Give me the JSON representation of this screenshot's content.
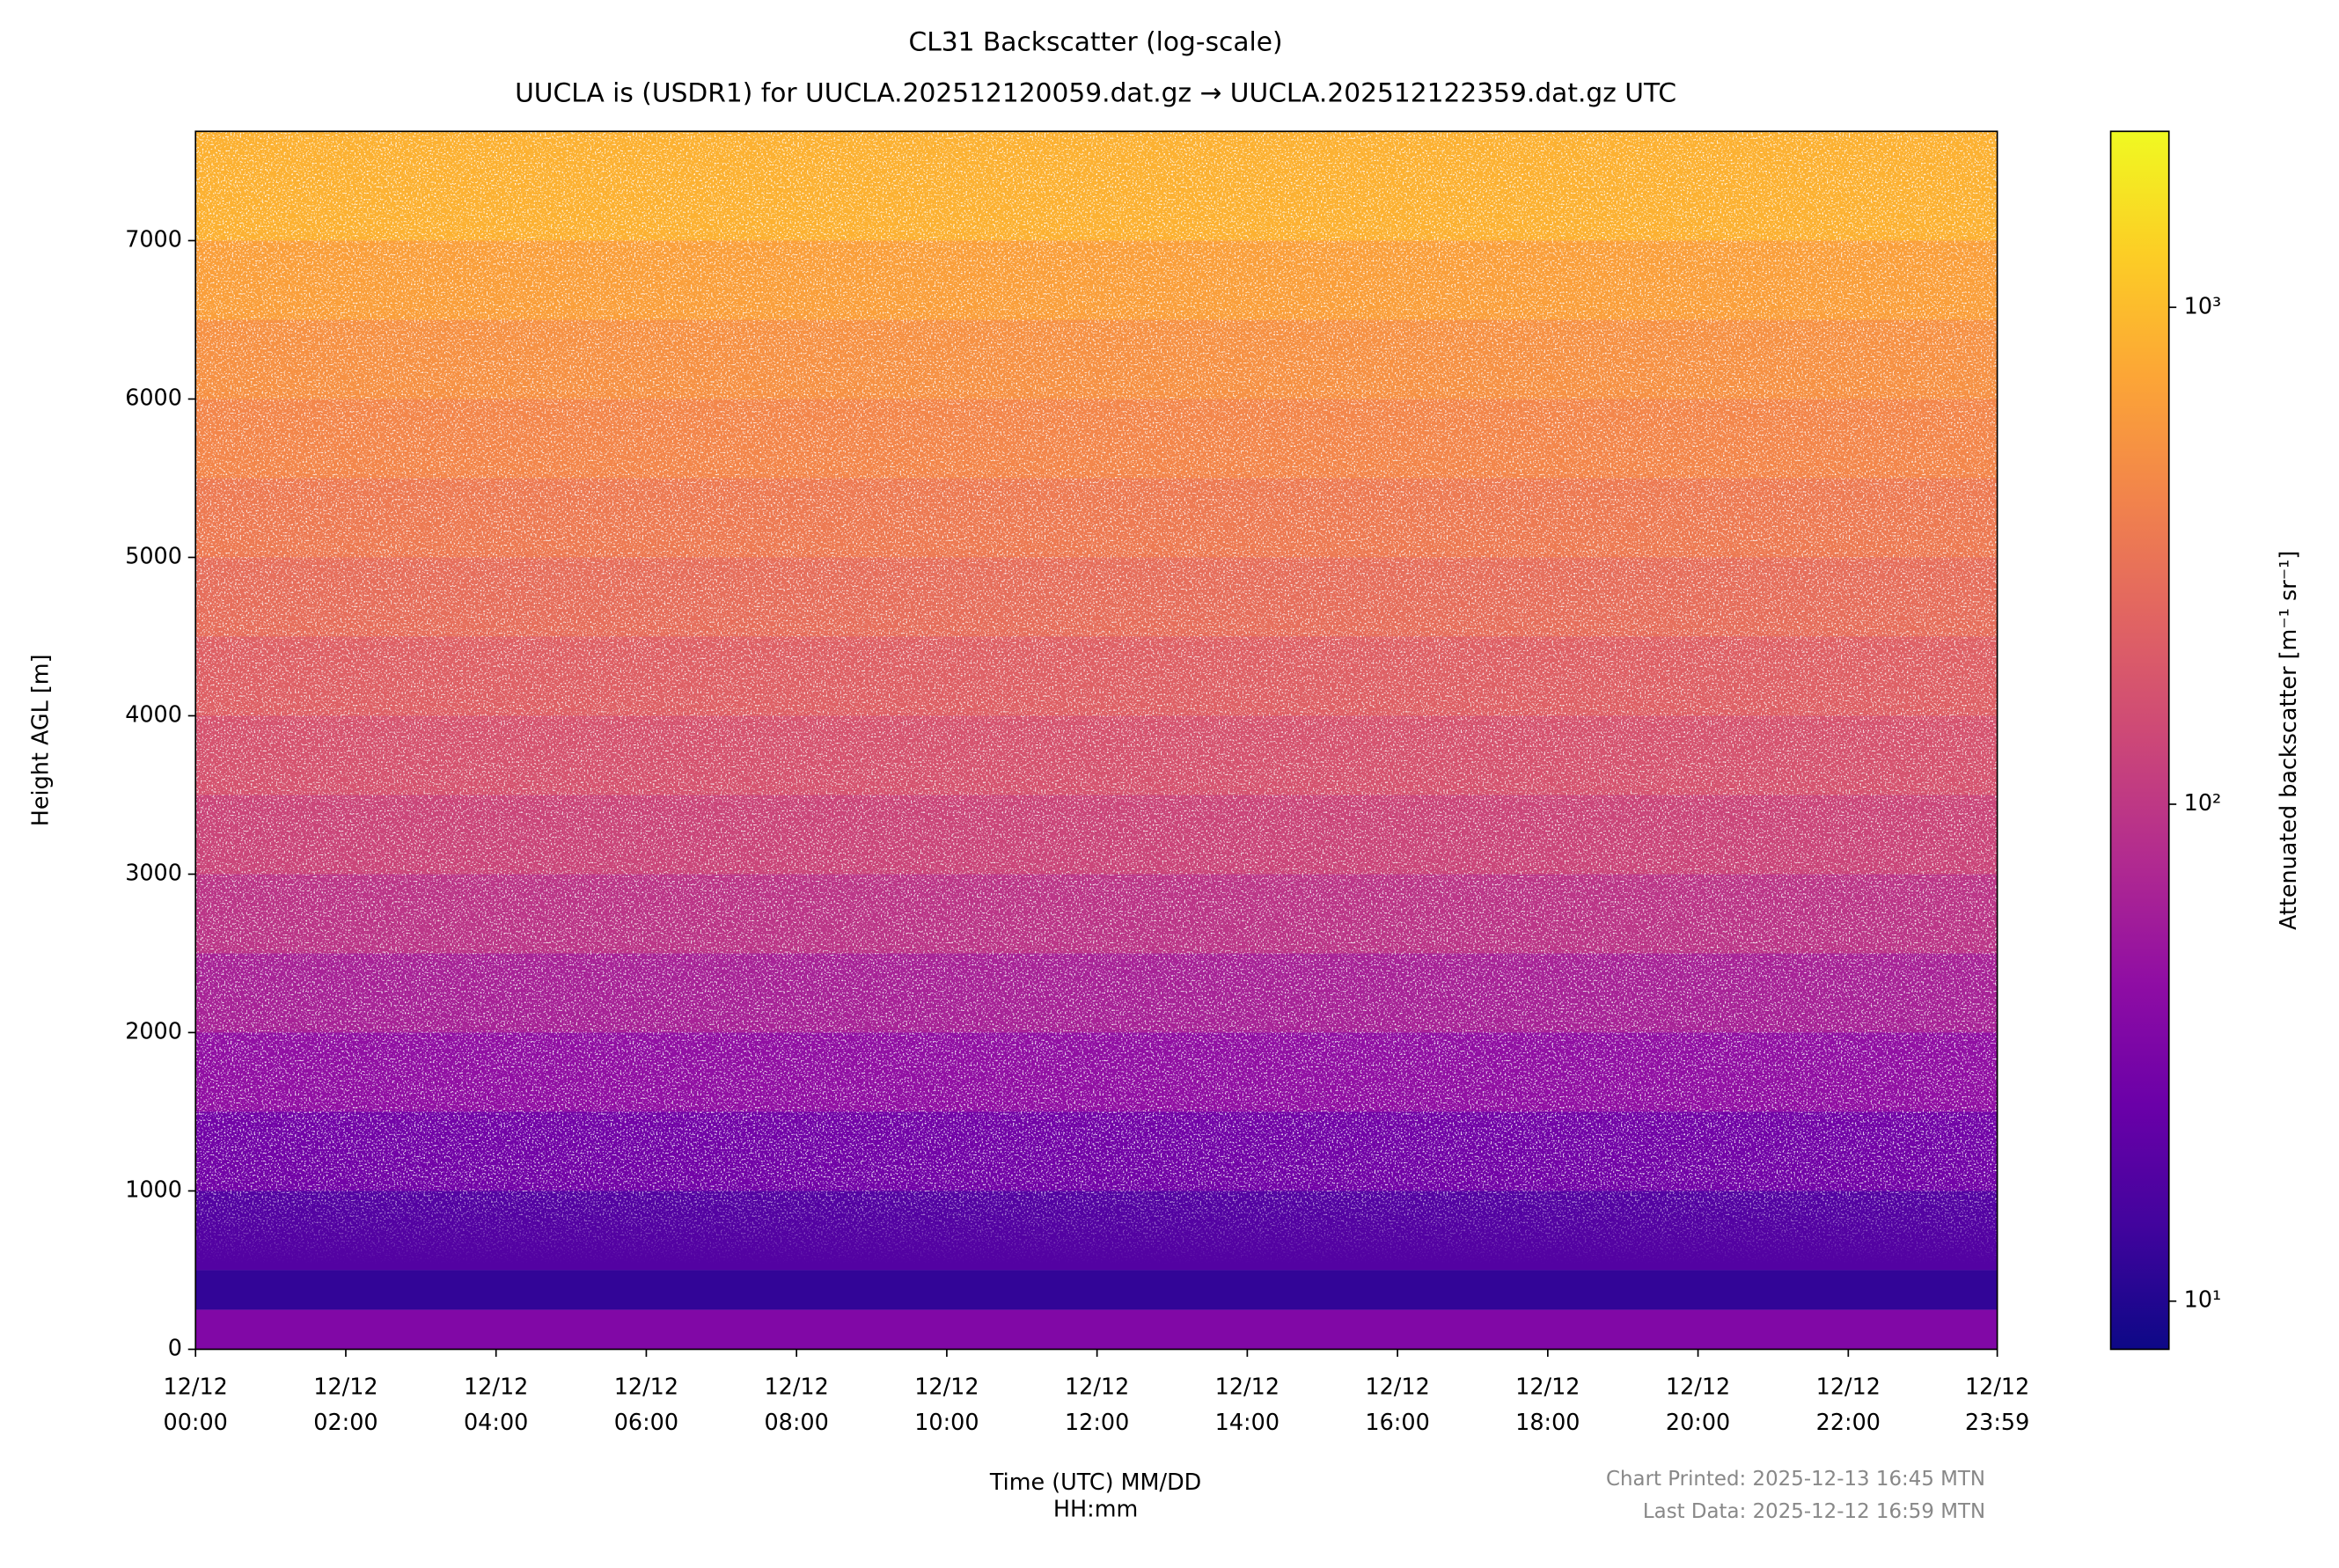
{
  "chart_data": {
    "type": "heatmap",
    "title": "CL31 Backscatter (log-scale)",
    "subtitle": "UUCLA is (USDR1) for UUCLA.202512120059.dat.gz → UUCLA.202512122359.dat.gz UTC",
    "x_label": "Time (UTC) MM/DD\nHH:mm",
    "y_label": "Height AGL [m]",
    "colorbar_label": "Attenuated backscatter [m⁻¹ sr⁻¹]",
    "annotations": [
      "Chart Printed: 2025-12-13 16:45 MTN",
      "Last Data: 2025-12-12 16:59 MTN"
    ],
    "xlim": [
      0,
      1439
    ],
    "xticks": [
      {
        "value": 0,
        "label": "12/12\n00:00"
      },
      {
        "value": 120,
        "label": "12/12\n02:00"
      },
      {
        "value": 240,
        "label": "12/12\n04:00"
      },
      {
        "value": 360,
        "label": "12/12\n06:00"
      },
      {
        "value": 480,
        "label": "12/12\n08:00"
      },
      {
        "value": 600,
        "label": "12/12\n10:00"
      },
      {
        "value": 720,
        "label": "12/12\n12:00"
      },
      {
        "value": 840,
        "label": "12/12\n14:00"
      },
      {
        "value": 960,
        "label": "12/12\n16:00"
      },
      {
        "value": 1080,
        "label": "12/12\n18:00"
      },
      {
        "value": 1200,
        "label": "12/12\n20:00"
      },
      {
        "value": 1320,
        "label": "12/12\n22:00"
      },
      {
        "value": 1439,
        "label": "12/12\n23:59"
      }
    ],
    "ylim": [
      0,
      7690
    ],
    "yticks": [
      0,
      1000,
      2000,
      3000,
      4000,
      5000,
      6000,
      7000
    ],
    "ybins": [
      0,
      250,
      500,
      1000,
      1500,
      2000,
      2500,
      3000,
      3500,
      4000,
      4500,
      5000,
      5500,
      6000,
      6500,
      7000,
      7690
    ],
    "values": [
      35,
      12,
      18,
      28,
      45,
      65,
      95,
      130,
      170,
      220,
      280,
      350,
      430,
      520,
      650,
      850
    ],
    "colormap": "plasma",
    "color_scale": "log",
    "clim": [
      8,
      2260
    ],
    "cticks": [
      {
        "value": 10,
        "label": "10¹"
      },
      {
        "value": 100,
        "label": "10²"
      },
      {
        "value": 1000,
        "label": "10³"
      }
    ],
    "grid": false
  }
}
